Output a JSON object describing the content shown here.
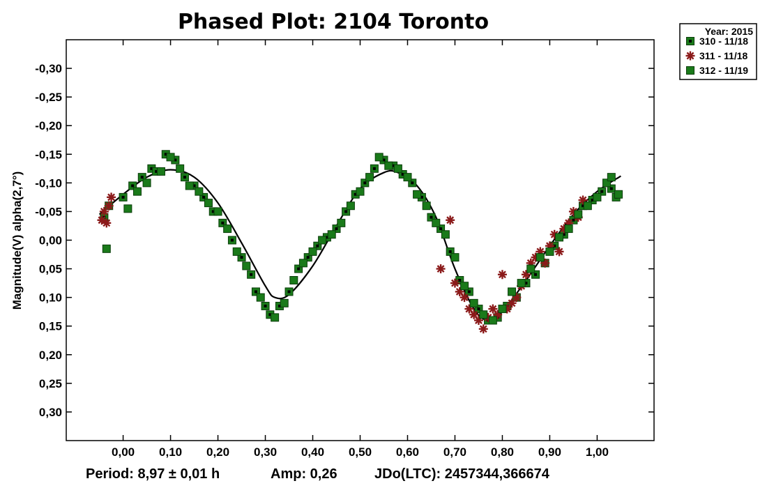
{
  "chart_data": {
    "type": "scatter",
    "title": "Phased Plot: 2104 Toronto",
    "ylabel": "Magnitude(V) alpha(2,7°)",
    "xlabel": "",
    "xlim": [
      -0.12,
      1.12
    ],
    "ylim": [
      -0.35,
      0.35
    ],
    "y_inverted": true,
    "x_ticks": [
      "0,00",
      "0,10",
      "0,20",
      "0,30",
      "0,40",
      "0,50",
      "0,60",
      "0,70",
      "0,80",
      "0,90",
      "1,00"
    ],
    "x_tick_values": [
      0,
      0.1,
      0.2,
      0.3,
      0.4,
      0.5,
      0.6,
      0.7,
      0.8,
      0.9,
      1.0
    ],
    "y_ticks": [
      "-0,30",
      "-0,25",
      "-0,20",
      "-0,15",
      "-0,10",
      "-0,05",
      "0,00",
      "0,05",
      "0,10",
      "0,15",
      "0,20",
      "0,25",
      "0,30"
    ],
    "y_tick_values": [
      -0.3,
      -0.25,
      -0.2,
      -0.15,
      -0.1,
      -0.05,
      0.0,
      0.05,
      0.1,
      0.15,
      0.2,
      0.25,
      0.3
    ],
    "grid": false,
    "legend": {
      "position": "top-right-outside",
      "title": "Year: 2015",
      "entries": [
        {
          "label": "310 - 11/18",
          "marker": "dotted-square",
          "color": "#1a7a1a"
        },
        {
          "label": "311 - 11/18",
          "marker": "asterisk",
          "color": "#8b1a1a"
        },
        {
          "label": "312 - 11/19",
          "marker": "square",
          "color": "#1a7a1a"
        }
      ]
    },
    "fit_curve": {
      "color": "#000000",
      "x": [
        -0.05,
        0.0,
        0.05,
        0.1,
        0.15,
        0.2,
        0.25,
        0.3,
        0.32,
        0.35,
        0.4,
        0.45,
        0.5,
        0.55,
        0.58,
        0.62,
        0.66,
        0.7,
        0.74,
        0.77,
        0.8,
        0.85,
        0.9,
        0.95,
        1.0,
        1.05
      ],
      "y": [
        -0.045,
        -0.08,
        -0.11,
        -0.123,
        -0.11,
        -0.065,
        0.005,
        0.08,
        0.1,
        0.095,
        0.045,
        -0.025,
        -0.09,
        -0.118,
        -0.118,
        -0.095,
        -0.04,
        0.05,
        0.12,
        0.14,
        0.125,
        0.07,
        0.01,
        -0.045,
        -0.085,
        -0.112
      ]
    },
    "series": [
      {
        "name": "310 - 11/18",
        "marker": "dotted-square",
        "color": "#1a7a1a",
        "x": [
          -0.04,
          -0.03,
          0.0,
          0.02,
          0.04,
          0.06,
          0.07,
          0.09,
          0.11,
          0.13,
          0.15,
          0.17,
          0.19,
          0.21,
          0.23,
          0.25,
          0.27,
          0.28,
          0.3,
          0.31,
          0.33,
          0.35,
          0.37,
          0.39,
          0.41,
          0.43,
          0.45,
          0.47,
          0.49,
          0.51,
          0.53,
          0.55,
          0.57,
          0.59,
          0.61,
          0.63,
          0.65,
          0.67,
          0.69,
          0.71,
          0.73,
          0.75,
          0.77,
          0.79,
          0.81,
          0.83,
          0.85,
          0.87,
          0.89,
          0.91,
          0.93,
          0.95,
          0.97,
          0.99,
          1.01,
          1.03,
          1.04
        ],
        "y": [
          -0.04,
          -0.06,
          -0.075,
          -0.095,
          -0.11,
          -0.125,
          -0.12,
          -0.15,
          -0.14,
          -0.11,
          -0.095,
          -0.075,
          -0.05,
          -0.03,
          0.0,
          0.03,
          0.06,
          0.09,
          0.115,
          0.13,
          0.115,
          0.09,
          0.05,
          0.03,
          0.01,
          -0.005,
          -0.02,
          -0.05,
          -0.08,
          -0.1,
          -0.125,
          -0.14,
          -0.13,
          -0.115,
          -0.1,
          -0.075,
          -0.04,
          -0.02,
          0.02,
          0.07,
          0.09,
          0.12,
          0.14,
          0.135,
          0.115,
          0.1,
          0.075,
          0.06,
          0.04,
          0.01,
          -0.01,
          -0.035,
          -0.06,
          -0.07,
          -0.085,
          -0.09,
          -0.075
        ]
      },
      {
        "name": "311 - 11/18",
        "marker": "asterisk",
        "color": "#8b1a1a",
        "x": [
          -0.045,
          -0.04,
          -0.035,
          -0.03,
          -0.025,
          0.67,
          0.69,
          0.7,
          0.71,
          0.72,
          0.73,
          0.74,
          0.75,
          0.76,
          0.77,
          0.78,
          0.79,
          0.8,
          0.81,
          0.82,
          0.83,
          0.84,
          0.85,
          0.86,
          0.87,
          0.88,
          0.89,
          0.9,
          0.91,
          0.92,
          0.93,
          0.94,
          0.95,
          0.96,
          0.97
        ],
        "y": [
          -0.035,
          -0.05,
          -0.03,
          -0.06,
          -0.075,
          0.05,
          -0.035,
          0.075,
          0.09,
          0.1,
          0.12,
          0.13,
          0.14,
          0.155,
          0.135,
          0.12,
          0.13,
          0.06,
          0.12,
          0.11,
          0.1,
          0.08,
          0.06,
          0.04,
          0.03,
          0.02,
          0.04,
          0.01,
          -0.01,
          0.02,
          -0.02,
          -0.03,
          -0.05,
          -0.04,
          -0.07
        ]
      },
      {
        "name": "312 - 11/19",
        "marker": "square",
        "color": "#1a7a1a",
        "x": [
          -0.035,
          0.01,
          0.03,
          0.05,
          0.08,
          0.1,
          0.12,
          0.14,
          0.16,
          0.18,
          0.2,
          0.22,
          0.24,
          0.26,
          0.29,
          0.32,
          0.34,
          0.36,
          0.38,
          0.4,
          0.42,
          0.44,
          0.46,
          0.48,
          0.5,
          0.52,
          0.54,
          0.56,
          0.58,
          0.6,
          0.62,
          0.64,
          0.66,
          0.68,
          0.7,
          0.72,
          0.74,
          0.76,
          0.78,
          0.8,
          0.82,
          0.84,
          0.86,
          0.88,
          0.9,
          0.92,
          0.94,
          0.96,
          0.98,
          1.0,
          1.02,
          1.03,
          1.045
        ],
        "y": [
          0.015,
          -0.055,
          -0.085,
          -0.1,
          -0.12,
          -0.145,
          -0.125,
          -0.095,
          -0.085,
          -0.065,
          -0.05,
          -0.02,
          0.02,
          0.045,
          0.1,
          0.135,
          0.11,
          0.07,
          0.04,
          0.02,
          0.0,
          -0.01,
          -0.03,
          -0.06,
          -0.085,
          -0.11,
          -0.145,
          -0.13,
          -0.125,
          -0.11,
          -0.08,
          -0.06,
          -0.03,
          -0.01,
          0.03,
          0.08,
          0.11,
          0.13,
          0.14,
          0.12,
          0.09,
          0.075,
          0.05,
          0.03,
          0.02,
          -0.005,
          -0.02,
          -0.045,
          -0.06,
          -0.075,
          -0.1,
          -0.11,
          -0.08
        ]
      }
    ],
    "footer": {
      "period": "Period: 8,97 ± 0,01 h",
      "amp": "Amp: 0,26",
      "jdo": "JDo(LTC): 2457344,366674"
    }
  }
}
